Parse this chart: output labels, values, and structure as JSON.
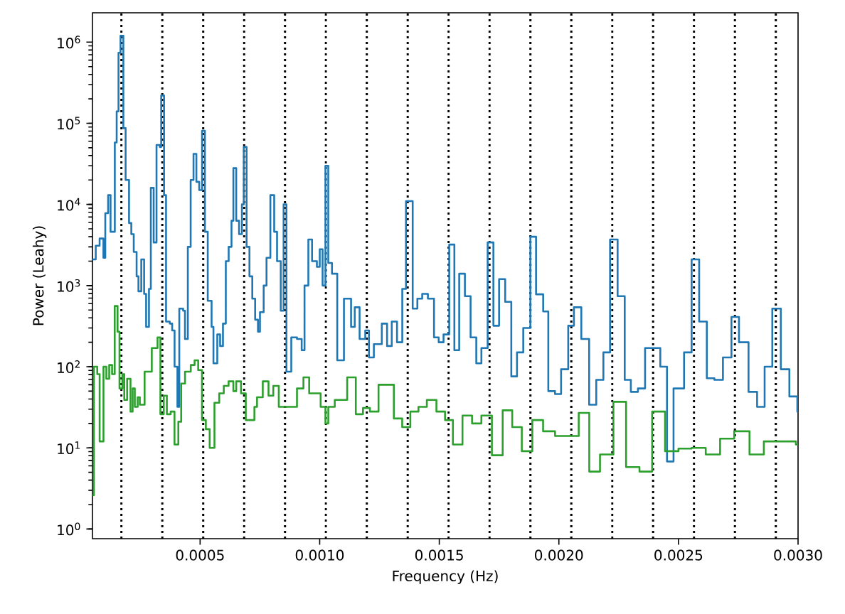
{
  "chart_data": {
    "type": "step",
    "xlabel": "Frequency (Hz)",
    "ylabel": "Power (Leahy)",
    "log": "y",
    "xlim": [
      5e-05,
      0.003
    ],
    "ylim": [
      0.76,
      2300000
    ],
    "xticks": [
      0.0005,
      {
        "value": 0.001,
        "label": "0.0010"
      },
      0.0015,
      {
        "value": 0.002,
        "label": "0.0020"
      },
      0.0025,
      {
        "value": 0.003,
        "label": "0.0030"
      }
    ],
    "yticks": [
      {
        "value": 1,
        "label": "10$^{0}$"
      },
      {
        "value": 10,
        "label": "10$^{1}$"
      },
      {
        "value": 100,
        "label": "10$^{2}$"
      },
      {
        "value": 1000,
        "label": "10$^{3}$"
      },
      {
        "value": 10000,
        "label": "10$^{4}$"
      },
      {
        "value": 100000,
        "label": "10$^{5}$"
      },
      {
        "value": 1000000,
        "label": "10$^{6}$"
      }
    ],
    "series": [
      {
        "color": "#1f77b4",
        "x": [
          5e-05,
          6.37e-05,
          7.98e-05,
          9.58e-05,
          0.0001036,
          0.0001155,
          0.0001256,
          0.0001434,
          0.0001512,
          0.0001589,
          0.0001672,
          0.0001791,
          0.0001886,
          0.0002029,
          0.0002124,
          0.0002226,
          0.0002345,
          0.0002422,
          0.0002541,
          0.000266,
          0.0002743,
          0.0002862,
          0.000294,
          0.0003059,
          0.0003178,
          0.0003314,
          0.0003374,
          0.0003493,
          0.0003576,
          0.0003731,
          0.0003832,
          0.0003933,
          0.0004052,
          0.000413,
          0.000429,
          0.0004368,
          0.0004487,
          0.0004606,
          0.0004725,
          0.0004844,
          0.0004963,
          0.0005082,
          0.0005201,
          0.000532,
          0.000548,
          0.0005558,
          0.0005718,
          0.0005837,
          0.0005956,
          0.0006075,
          0.0006194,
          0.0006313,
          0.0006391,
          0.000651,
          0.0006629,
          0.0006748,
          0.0006825,
          0.0006944,
          0.0007063,
          0.0007182,
          0.0007301,
          0.000742,
          0.0007503,
          0.0007658,
          0.0007777,
          0.0007938,
          0.0008098,
          0.0008217,
          0.0008372,
          0.0008491,
          0.000861,
          0.0008812,
          0.000905,
          0.0009247,
          0.0009366,
          0.0009526,
          0.0009681,
          0.0009883,
          0.0010002,
          0.0010121,
          0.001024,
          0.0010359,
          0.0010514,
          0.0010734,
          0.0011014,
          0.0011312,
          0.0011466,
          0.0011668,
          0.0011906,
          0.0012061,
          0.0012264,
          0.0012597,
          0.0012817,
          0.0013013,
          0.0013233,
          0.0013453,
          0.0013608,
          0.0013888,
          0.0014084,
          0.0014286,
          0.0014524,
          0.001478,
          0.0014976,
          0.0015178,
          0.0015417,
          0.0015631,
          0.0015833,
          0.0016071,
          0.0016309,
          0.0016547,
          0.0016761,
          0.0017023,
          0.0017262,
          0.00175,
          0.0017755,
          0.0018011,
          0.0018249,
          0.0018511,
          0.0018808,
          0.0019046,
          0.0019344,
          0.0019558,
          0.0019838,
          0.0020093,
          0.0020391,
          0.0020629,
          0.0020938,
          0.0021265,
          0.0021563,
          0.0021861,
          0.002214,
          0.0022456,
          0.0022753,
          0.0023009,
          0.0023306,
          0.0023604,
          0.0023961,
          0.0024241,
          0.002452,
          0.0024794,
          0.0025234,
          0.002555,
          0.0025865,
          0.0026186,
          0.0026502,
          0.0026859,
          0.0027216,
          0.0027531,
          0.002793,
          0.0028287,
          0.0028602,
          0.0028923,
          0.002928,
          0.0029637,
          0.002997
        ],
        "values": [
          2100,
          3100,
          3800,
          2200,
          7800,
          13000,
          4600,
          58000,
          140000,
          740000,
          1200000,
          87000,
          20000,
          5900,
          4300,
          2600,
          1300,
          850,
          2100,
          790,
          310,
          910,
          16000,
          3400,
          54000,
          51000,
          220000,
          13000,
          360,
          340,
          280,
          100,
          32,
          520,
          490,
          220,
          3000,
          20000,
          42000,
          19000,
          15000,
          81000,
          4600,
          650,
          310,
          110,
          250,
          180,
          340,
          2000,
          3000,
          6300,
          28000,
          6300,
          4300,
          10000,
          51000,
          3000,
          1300,
          690,
          380,
          270,
          470,
          1000,
          2200,
          13000,
          4600,
          2000,
          490,
          10000,
          87,
          230,
          220,
          160,
          1000,
          3700,
          2000,
          1700,
          2800,
          1000,
          30000,
          1900,
          1400,
          120,
          690,
          310,
          540,
          220,
          280,
          130,
          190,
          340,
          180,
          360,
          200,
          910,
          11000,
          520,
          690,
          790,
          690,
          230,
          200,
          250,
          3200,
          160,
          1400,
          740,
          230,
          110,
          170,
          3400,
          320,
          1200,
          630,
          76,
          150,
          300,
          4000,
          780,
          480,
          50,
          46,
          93,
          320,
          540,
          220,
          34,
          69,
          150,
          3700,
          740,
          69,
          49,
          54,
          170,
          170,
          100,
          6.8,
          54,
          150,
          2100,
          360,
          72,
          69,
          130,
          410,
          200,
          49,
          32,
          100,
          520,
          93,
          43,
          28
        ]
      },
      {
        "color": "#2ca02c",
        "x": [
          5e-05,
          5.6e-05,
          7e-05,
          8e-05,
          9.6e-05,
          0.000108,
          0.00012,
          0.000132,
          0.000143,
          0.000155,
          0.000163,
          0.000175,
          0.000183,
          0.000195,
          0.000209,
          0.000218,
          0.000227,
          0.000239,
          0.000248,
          0.000268,
          0.000298,
          0.000322,
          0.000334,
          0.000348,
          0.000361,
          0.000377,
          0.000393,
          0.000409,
          0.000421,
          0.000437,
          0.000461,
          0.000477,
          0.000492,
          0.000508,
          0.000524,
          0.00054,
          0.00056,
          0.00058,
          0.000599,
          0.000619,
          0.000639,
          0.000651,
          0.000671,
          0.000691,
          0.000727,
          0.000738,
          0.000762,
          0.000786,
          0.000806,
          0.000829,
          0.000905,
          0.000932,
          0.000956,
          0.001004,
          0.001024,
          0.001036,
          0.001063,
          0.001115,
          0.001151,
          0.001181,
          0.00121,
          0.001246,
          0.00131,
          0.001345,
          0.001379,
          0.001413,
          0.001448,
          0.001488,
          0.001524,
          0.001557,
          0.001597,
          0.001637,
          0.001676,
          0.00172,
          0.001765,
          0.001805,
          0.001845,
          0.001889,
          0.001934,
          0.001984,
          0.002083,
          0.002127,
          0.002172,
          0.002228,
          0.002281,
          0.002337,
          0.00239,
          0.002444,
          0.0025,
          0.002555,
          0.002614,
          0.002674,
          0.002733,
          0.002797,
          0.002857,
          0.002991
        ],
        "values": [
          2.6,
          100,
          81,
          12,
          100,
          71,
          105,
          81,
          560,
          270,
          54,
          81,
          39,
          71,
          28,
          54,
          32,
          42,
          34,
          87,
          170,
          230,
          26,
          44,
          26,
          28,
          11,
          21,
          62,
          87,
          105,
          120,
          91,
          22,
          17,
          10,
          36,
          47,
          58,
          66,
          50,
          66,
          47,
          22,
          32,
          42,
          66,
          44,
          58,
          32,
          54,
          74,
          47,
          32,
          20,
          32,
          39,
          74,
          26,
          31,
          28,
          60,
          23,
          18,
          28,
          32,
          39,
          28,
          22,
          11,
          25,
          20,
          25,
          8.1,
          29,
          18,
          9.1,
          22,
          16,
          14,
          27,
          5.1,
          8.3,
          37,
          5.8,
          5.1,
          28,
          9.1,
          9.8,
          10,
          8.3,
          13,
          16,
          8.3,
          12,
          11
        ]
      }
    ],
    "ref_lines": [
      {
        "axis": "x",
        "value": 0.000171,
        "color": "#000000",
        "line_style": "dotted"
      },
      {
        "axis": "x",
        "value": 0.000342,
        "color": "#000000",
        "line_style": "dotted"
      },
      {
        "axis": "x",
        "value": 0.000513,
        "color": "#000000",
        "line_style": "dotted"
      },
      {
        "axis": "x",
        "value": 0.000684,
        "color": "#000000",
        "line_style": "dotted"
      },
      {
        "axis": "x",
        "value": 0.000855,
        "color": "#000000",
        "line_style": "dotted"
      },
      {
        "axis": "x",
        "value": 0.001026,
        "color": "#000000",
        "line_style": "dotted"
      },
      {
        "axis": "x",
        "value": 0.001197,
        "color": "#000000",
        "line_style": "dotted"
      },
      {
        "axis": "x",
        "value": 0.001368,
        "color": "#000000",
        "line_style": "dotted"
      },
      {
        "axis": "x",
        "value": 0.001539,
        "color": "#000000",
        "line_style": "dotted"
      },
      {
        "axis": "x",
        "value": 0.00171,
        "color": "#000000",
        "line_style": "dotted"
      },
      {
        "axis": "x",
        "value": 0.001881,
        "color": "#000000",
        "line_style": "dotted"
      },
      {
        "axis": "x",
        "value": 0.002052,
        "color": "#000000",
        "line_style": "dotted"
      },
      {
        "axis": "x",
        "value": 0.002223,
        "color": "#000000",
        "line_style": "dotted"
      },
      {
        "axis": "x",
        "value": 0.002394,
        "color": "#000000",
        "line_style": "dotted"
      },
      {
        "axis": "x",
        "value": 0.002565,
        "color": "#000000",
        "line_style": "dotted"
      },
      {
        "axis": "x",
        "value": 0.002736,
        "color": "#000000",
        "line_style": "dotted"
      },
      {
        "axis": "x",
        "value": 0.002907,
        "color": "#000000",
        "line_style": "dotted"
      }
    ]
  }
}
